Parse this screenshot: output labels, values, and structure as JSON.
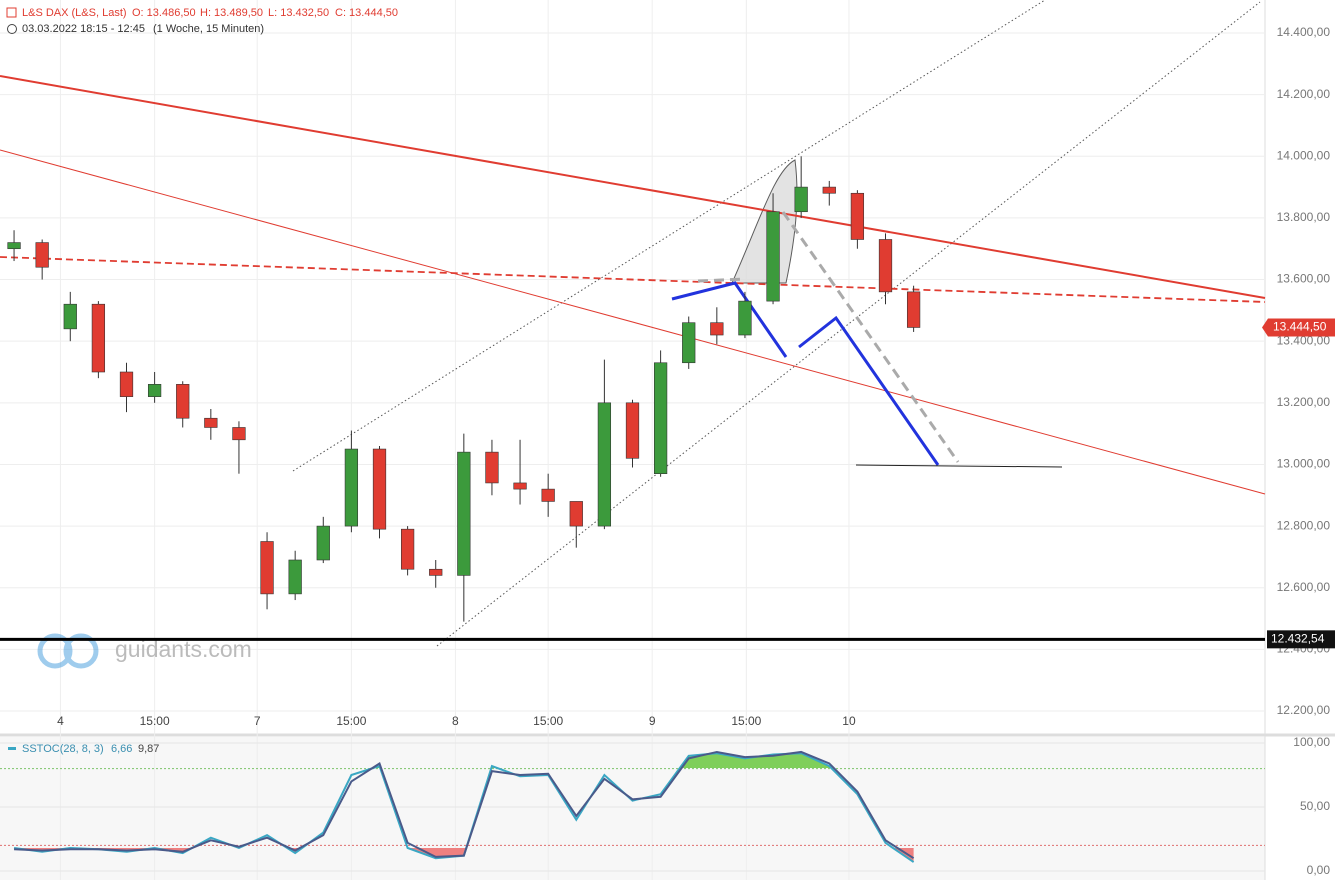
{
  "header": {
    "instrument": "L&S DAX (L&S, Last)",
    "open": "O: 13.486,50",
    "high": "H: 13.489,50",
    "low": "L: 13.432,50",
    "close": "C: 13.444,50",
    "range": "03.03.2022 18:15 - 12:45",
    "period": "(1 Woche, 15 Minuten)",
    "watermark": "guidants.com"
  },
  "chart_data": [
    {
      "type": "candlestick",
      "x": [
        1,
        3,
        5,
        7,
        9,
        11,
        13,
        15,
        17,
        19,
        21,
        23,
        25,
        27,
        29,
        31,
        33,
        35,
        37,
        39,
        41,
        43,
        45,
        47,
        49,
        51,
        53,
        55,
        57,
        59,
        61,
        63,
        65
      ],
      "open": [
        13700,
        13720,
        13440,
        13520,
        13300,
        13220,
        13260,
        13150,
        13120,
        12750,
        12580,
        12690,
        12800,
        13050,
        12790,
        12660,
        12640,
        13040,
        12940,
        12920,
        12880,
        12800,
        13200,
        12970,
        13330,
        13460,
        13420,
        13530,
        13820,
        13900,
        13880,
        13730,
        13560
      ],
      "high": [
        13760,
        13730,
        13560,
        13530,
        13330,
        13300,
        13270,
        13180,
        13140,
        12780,
        12720,
        12830,
        13110,
        13060,
        12800,
        12690,
        13100,
        13080,
        13080,
        12970,
        12880,
        13340,
        13210,
        13370,
        13480,
        13510,
        13560,
        13880,
        14000,
        13920,
        13890,
        13750,
        13580
      ],
      "low": [
        13660,
        13600,
        13400,
        13280,
        13170,
        13200,
        13120,
        13080,
        12970,
        12530,
        12560,
        12680,
        12780,
        12760,
        12640,
        12600,
        12490,
        12900,
        12870,
        12830,
        12730,
        12790,
        12990,
        12960,
        13310,
        13390,
        13410,
        13520,
        13800,
        13840,
        13700,
        13520,
        13430
      ],
      "close": [
        13720,
        13640,
        13520,
        13300,
        13220,
        13260,
        13150,
        13120,
        13080,
        12580,
        12690,
        12800,
        13050,
        12790,
        12660,
        12640,
        13040,
        12940,
        12920,
        12880,
        12800,
        13200,
        13020,
        13330,
        13460,
        13420,
        13530,
        13820,
        13900,
        13880,
        13730,
        13560,
        13444.5
      ],
      "up_color": "#3c9a3c",
      "down_color": "#e03c31",
      "xlim": [
        0,
        90
      ],
      "xticks": [
        {
          "value": 4.3,
          "label": "4"
        },
        {
          "value": 11.0,
          "label": "15:00"
        },
        {
          "value": 18.3,
          "label": "7"
        },
        {
          "value": 25.0,
          "label": "15:00"
        },
        {
          "value": 32.4,
          "label": "8"
        },
        {
          "value": 39.0,
          "label": "15:00"
        },
        {
          "value": 46.4,
          "label": "9"
        },
        {
          "value": 53.1,
          "label": "15:00"
        },
        {
          "value": 60.4,
          "label": "10"
        }
      ],
      "ylim": [
        12200,
        14400
      ],
      "yticks": [
        {
          "value": 12200,
          "label": "12.200,00"
        },
        {
          "value": 12400,
          "label": "12.400,00"
        },
        {
          "value": 12600,
          "label": "12.600,00"
        },
        {
          "value": 12800,
          "label": "12.800,00"
        },
        {
          "value": 13000,
          "label": "13.000,00"
        },
        {
          "value": 13200,
          "label": "13.200,00"
        },
        {
          "value": 13400,
          "label": "13.400,00"
        },
        {
          "value": 13600,
          "label": "13.600,00"
        },
        {
          "value": 13800,
          "label": "13.800,00"
        },
        {
          "value": 14000,
          "label": "14.000,00"
        },
        {
          "value": 14200,
          "label": "14.200,00"
        },
        {
          "value": 14400,
          "label": "14.400,00"
        }
      ],
      "last_price": {
        "value": 13444.5,
        "label": "13.444,50"
      },
      "support": {
        "value": 12432.54,
        "label": "12.432,54"
      }
    },
    {
      "type": "line",
      "title": "SSTOC(28, 8, 3)",
      "current_labels": [
        "6,66",
        "9,87"
      ],
      "x": [
        1,
        3,
        5,
        7,
        9,
        11,
        13,
        15,
        17,
        19,
        21,
        23,
        25,
        27,
        29,
        31,
        33,
        35,
        37,
        39,
        41,
        43,
        45,
        47,
        49,
        51,
        53,
        55,
        57,
        59,
        61,
        63,
        65
      ],
      "series": [
        {
          "color": "#3aa7c4",
          "values": [
            18,
            15,
            18,
            17,
            15,
            18,
            14,
            26,
            18,
            28,
            14,
            30,
            75,
            82,
            18,
            10,
            12,
            82,
            74,
            75,
            40,
            75,
            55,
            60,
            90,
            92,
            88,
            91,
            92,
            82,
            60,
            22,
            7
          ]
        },
        {
          "color": "#4a5a8a",
          "values": [
            17,
            16,
            17,
            17,
            16,
            17,
            15,
            24,
            19,
            26,
            16,
            28,
            70,
            84,
            22,
            11,
            12,
            78,
            75,
            76,
            43,
            72,
            56,
            58,
            88,
            93,
            89,
            90,
            93,
            84,
            62,
            24,
            10
          ]
        }
      ],
      "bands": [
        20,
        80
      ],
      "above_color": "#7fcf5a",
      "below_color": "#ee8080",
      "ylim": [
        0,
        100
      ],
      "yticks": [
        {
          "value": 0,
          "label": "0,00"
        },
        {
          "value": 50,
          "label": "50,00"
        },
        {
          "value": 100,
          "label": "100,00"
        }
      ]
    }
  ]
}
